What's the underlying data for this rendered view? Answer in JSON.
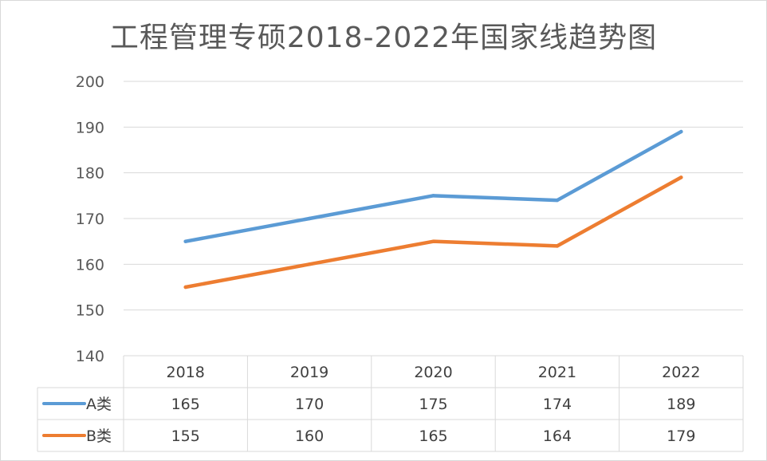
{
  "chart_data": {
    "type": "line",
    "title": "工程管理专硕2018-2022年国家线趋势图",
    "categories": [
      "2018",
      "2019",
      "2020",
      "2021",
      "2022"
    ],
    "series": [
      {
        "name": "A类",
        "values": [
          165,
          170,
          175,
          174,
          189
        ],
        "color": "#5b9bd5"
      },
      {
        "name": "B类",
        "values": [
          155,
          160,
          165,
          164,
          179
        ],
        "color": "#ed7d31"
      }
    ],
    "ylim": [
      140,
      200
    ],
    "yticks": [
      140,
      150,
      160,
      170,
      180,
      190,
      200
    ],
    "grid": true,
    "data_table": true,
    "gridline_color": "#d9d9d9"
  }
}
